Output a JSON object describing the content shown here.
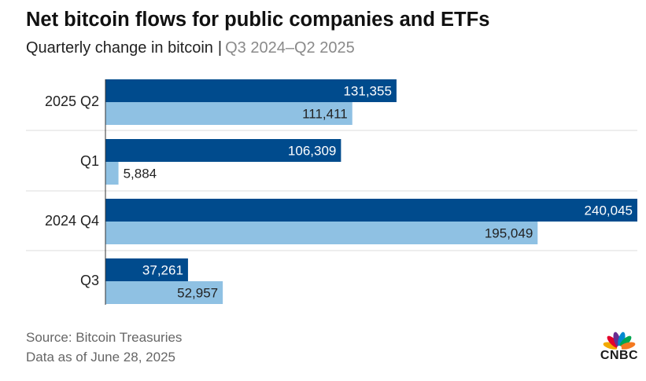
{
  "header": {
    "title": "Net bitcoin flows for public companies and ETFs",
    "subtitle_main": "Quarterly change in bitcoin",
    "subtitle_sep": "|",
    "subtitle_period": "Q3 2024–Q2 2025"
  },
  "footer": {
    "source": "Source: Bitcoin Treasuries",
    "data_as_of": "Data as of June 28, 2025"
  },
  "logo": {
    "text": "CNBC",
    "icon": "cnbc-peacock-icon"
  },
  "colors": {
    "dark_bar": "#004b8d",
    "light_bar": "#8fc1e3",
    "grid": "#dddddd"
  },
  "chart_data": {
    "type": "bar",
    "orientation": "horizontal",
    "categories": [
      "2025 Q2",
      "Q1",
      "2024 Q4",
      "Q3"
    ],
    "series": [
      {
        "color": "#004b8d",
        "values": [
          131355,
          106309,
          240045,
          37261
        ],
        "labels": [
          "131,355",
          "106,309",
          "240,045",
          "37,261"
        ]
      },
      {
        "color": "#8fc1e3",
        "values": [
          111411,
          5884,
          195049,
          52957
        ],
        "labels": [
          "111,411",
          "5,884",
          "195,049",
          "52,957"
        ]
      }
    ],
    "xlim": [
      0,
      240045
    ],
    "grid": "horizontal separators between groups",
    "legend": "none"
  }
}
